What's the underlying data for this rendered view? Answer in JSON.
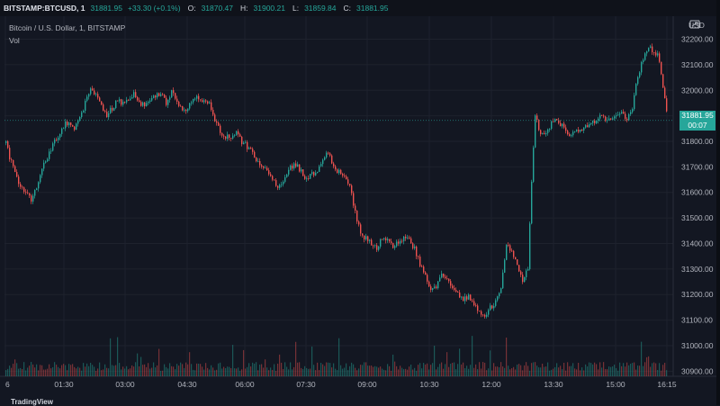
{
  "header": {
    "symbol": "BITSTAMP:BTCUSD, 1",
    "last": "31881.95",
    "change": "+33.30 (+0.1%)",
    "open_label": "O:",
    "open": "31870.47",
    "high_label": "H:",
    "high": "31900.21",
    "low_label": "L:",
    "low": "31859.84",
    "close_label": "C:",
    "close": "31881.95"
  },
  "legend": {
    "title": "Bitcoin / U.S. Dollar, 1, BITSTAMP",
    "vol": "Vol"
  },
  "price_tag": {
    "price": "31881.95",
    "countdown": "00:07"
  },
  "footer": {
    "brand": "TradingView"
  },
  "colors": {
    "up": "#26a69a",
    "down": "#ef5350",
    "background": "#131722",
    "grid": "#1e222d"
  },
  "chart_data": {
    "type": "candlestick",
    "currency": "USD",
    "x_ticks": [
      "6",
      "01:30",
      "03:00",
      "04:30",
      "06:00",
      "07:30",
      "09:00",
      "10:30",
      "12:00",
      "13:30",
      "15:00",
      "16:15"
    ],
    "y_ticks": [
      32200,
      32100,
      32000,
      31900,
      31800,
      31700,
      31600,
      31500,
      31400,
      31300,
      31200,
      31100,
      31000,
      30900
    ],
    "ylim": [
      30880,
      32290
    ],
    "last_price": 31881.95,
    "price_path": [
      [
        0,
        31850
      ],
      [
        4,
        31820
      ],
      [
        10,
        31740
      ],
      [
        16,
        31680
      ],
      [
        22,
        31620
      ],
      [
        28,
        31600
      ],
      [
        34,
        31570
      ],
      [
        40,
        31620
      ],
      [
        46,
        31690
      ],
      [
        52,
        31740
      ],
      [
        58,
        31790
      ],
      [
        64,
        31820
      ],
      [
        70,
        31860
      ],
      [
        76,
        31880
      ],
      [
        82,
        31850
      ],
      [
        88,
        31890
      ],
      [
        94,
        31950
      ],
      [
        100,
        32010
      ],
      [
        106,
        31980
      ],
      [
        112,
        31940
      ],
      [
        118,
        31900
      ],
      [
        124,
        31930
      ],
      [
        130,
        31960
      ],
      [
        136,
        31950
      ],
      [
        142,
        31970
      ],
      [
        148,
        31990
      ],
      [
        154,
        31950
      ],
      [
        160,
        31940
      ],
      [
        166,
        31960
      ],
      [
        172,
        31980
      ],
      [
        178,
        31990
      ],
      [
        184,
        31950
      ],
      [
        190,
        31990
      ],
      [
        196,
        31960
      ],
      [
        202,
        31920
      ],
      [
        208,
        31930
      ],
      [
        214,
        31960
      ],
      [
        220,
        31970
      ],
      [
        226,
        31950
      ],
      [
        232,
        31960
      ],
      [
        238,
        31880
      ],
      [
        244,
        31840
      ],
      [
        250,
        31820
      ],
      [
        256,
        31810
      ],
      [
        262,
        31830
      ],
      [
        268,
        31800
      ],
      [
        274,
        31780
      ],
      [
        280,
        31750
      ],
      [
        286,
        31720
      ],
      [
        292,
        31700
      ],
      [
        298,
        31680
      ],
      [
        304,
        31640
      ],
      [
        310,
        31620
      ],
      [
        316,
        31660
      ],
      [
        322,
        31700
      ],
      [
        328,
        31710
      ],
      [
        334,
        31680
      ],
      [
        340,
        31650
      ],
      [
        346,
        31670
      ],
      [
        352,
        31690
      ],
      [
        358,
        31720
      ],
      [
        364,
        31760
      ],
      [
        370,
        31700
      ],
      [
        376,
        31680
      ],
      [
        382,
        31660
      ],
      [
        388,
        31620
      ],
      [
        394,
        31520
      ],
      [
        400,
        31440
      ],
      [
        406,
        31420
      ],
      [
        412,
        31400
      ],
      [
        418,
        31380
      ],
      [
        424,
        31420
      ],
      [
        430,
        31410
      ],
      [
        436,
        31390
      ],
      [
        442,
        31400
      ],
      [
        448,
        31420
      ],
      [
        454,
        31410
      ],
      [
        460,
        31380
      ],
      [
        466,
        31320
      ],
      [
        472,
        31280
      ],
      [
        478,
        31220
      ],
      [
        484,
        31230
      ],
      [
        490,
        31290
      ],
      [
        496,
        31260
      ],
      [
        502,
        31230
      ],
      [
        508,
        31200
      ],
      [
        514,
        31180
      ],
      [
        520,
        31190
      ],
      [
        526,
        31160
      ],
      [
        532,
        31130
      ],
      [
        538,
        31120
      ],
      [
        544,
        31150
      ],
      [
        550,
        31170
      ],
      [
        556,
        31220
      ],
      [
        562,
        31400
      ],
      [
        568,
        31360
      ],
      [
        574,
        31320
      ],
      [
        580,
        31250
      ],
      [
        586,
        31300
      ],
      [
        590,
        31650
      ],
      [
        594,
        31900
      ],
      [
        600,
        31830
      ],
      [
        606,
        31840
      ],
      [
        612,
        31870
      ],
      [
        618,
        31880
      ],
      [
        624,
        31860
      ],
      [
        630,
        31820
      ],
      [
        636,
        31830
      ],
      [
        642,
        31840
      ],
      [
        648,
        31850
      ],
      [
        654,
        31870
      ],
      [
        660,
        31880
      ],
      [
        666,
        31900
      ],
      [
        672,
        31890
      ],
      [
        678,
        31880
      ],
      [
        684,
        31900
      ],
      [
        690,
        31910
      ],
      [
        696,
        31880
      ],
      [
        702,
        31930
      ],
      [
        708,
        32060
      ],
      [
        714,
        32120
      ],
      [
        720,
        32170
      ],
      [
        726,
        32150
      ],
      [
        730,
        32140
      ],
      [
        734,
        32070
      ],
      [
        738,
        31960
      ],
      [
        741,
        31882
      ]
    ]
  }
}
